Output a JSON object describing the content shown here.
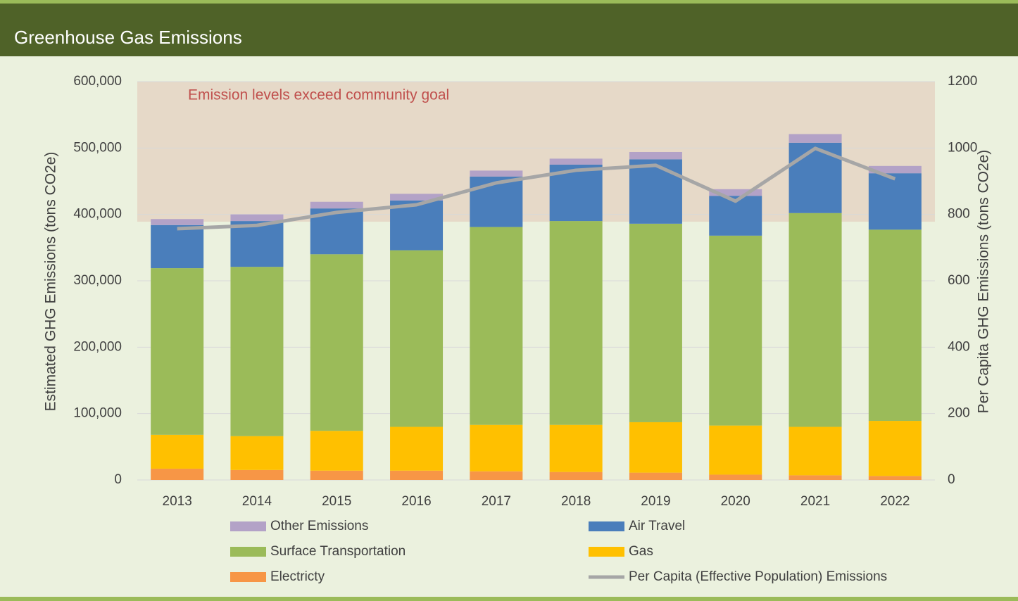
{
  "chart_data": {
    "type": "bar",
    "stacked": true,
    "title": "Greenhouse Gas Emissions",
    "y_label": "Estimated GHG Emissions (tons CO2e)",
    "y2_label": "Per Capita GHG Emissions (tons CO2e)",
    "goal_band": {
      "label": "Emission levels exceed community goal",
      "from": 389000,
      "color": "#e6d9c8"
    },
    "categories": [
      "2013",
      "2014",
      "2015",
      "2016",
      "2017",
      "2018",
      "2019",
      "2020",
      "2021",
      "2022"
    ],
    "series": [
      {
        "name": "Other Emissions",
        "color": "#b3a2c7",
        "values": [
          9000,
          10000,
          10000,
          10000,
          9000,
          9000,
          11000,
          10000,
          13000,
          11000
        ]
      },
      {
        "name": "Air Travel",
        "color": "#4a7ebb",
        "values": [
          65000,
          69000,
          69000,
          75000,
          76000,
          85000,
          97000,
          60000,
          106000,
          85000
        ]
      },
      {
        "name": "Surface Transportation",
        "color": "#9bbb59",
        "values": [
          251000,
          255000,
          266000,
          266000,
          298000,
          307000,
          299000,
          286000,
          322000,
          288000
        ]
      },
      {
        "name": "Gas",
        "color": "#ffc000",
        "values": [
          51000,
          51000,
          60000,
          66000,
          70000,
          71000,
          76000,
          74000,
          73000,
          83000
        ]
      },
      {
        "name": "Electricty",
        "color": "#f79646",
        "values": [
          17000,
          15000,
          14000,
          14000,
          13000,
          12000,
          11000,
          8000,
          7000,
          6000
        ]
      },
      {
        "name": "Per Capita (Effective Population) Emissions",
        "color": "#a6a6a6",
        "type": "line",
        "axis": "y2",
        "values": [
          757,
          767,
          806,
          829,
          895,
          933,
          948,
          840,
          999,
          907
        ]
      }
    ],
    "ylim": [
      0,
      600000
    ],
    "yticks": [
      0,
      {
        "value": 100000,
        "label": "100,000"
      },
      {
        "value": 200000,
        "label": "200,000"
      },
      {
        "value": 300000,
        "label": "300,000"
      },
      {
        "value": 400000,
        "label": "400,000"
      },
      {
        "value": 500000,
        "label": "500,000"
      },
      {
        "value": 600000,
        "label": "600,000"
      }
    ],
    "y2lim": [
      0,
      1200
    ],
    "y2ticks": [
      0,
      200,
      400,
      600,
      800,
      1000,
      1200
    ],
    "grid": true
  }
}
